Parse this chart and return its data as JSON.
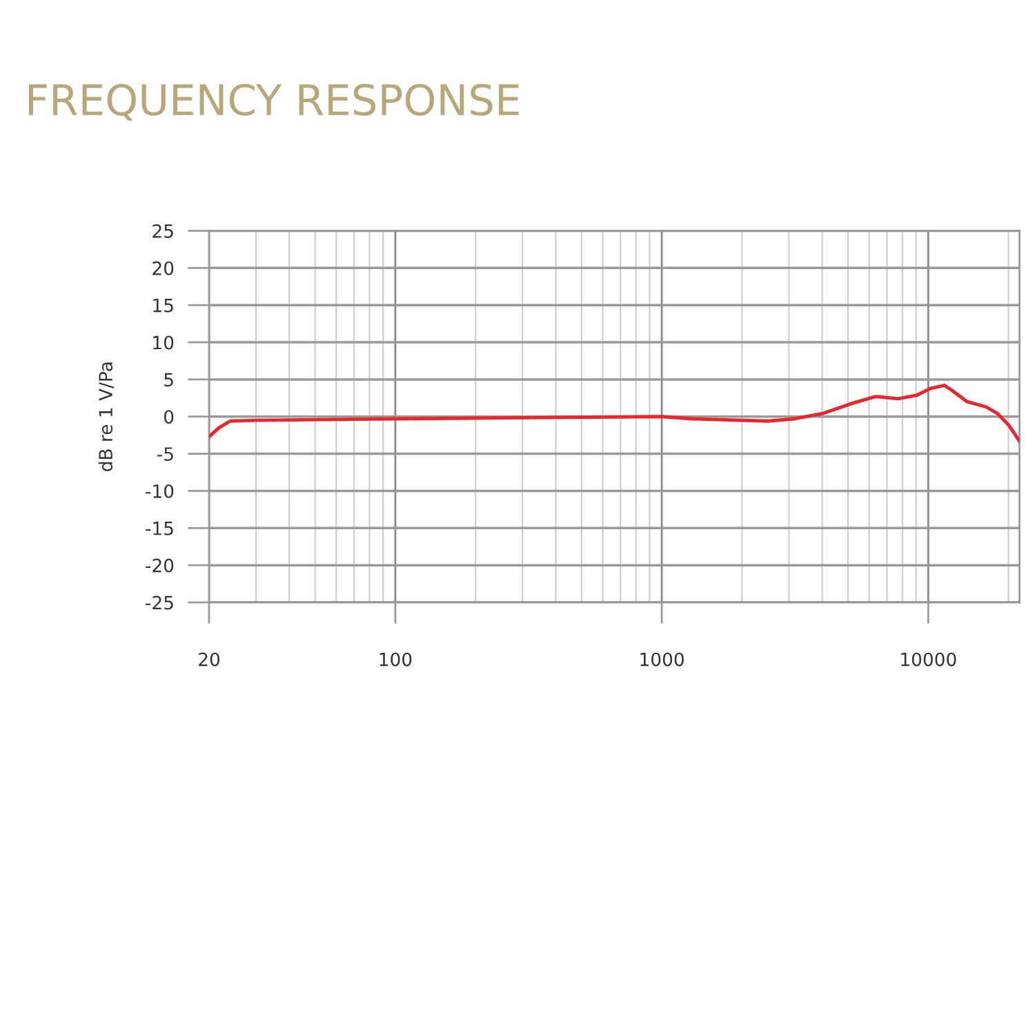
{
  "chart_data": {
    "type": "line",
    "title": "FREQUENCY RESPONSE",
    "ylabel": "dB re 1 V/Pa",
    "log": "x",
    "grid": true,
    "marker": "none",
    "line_style": "solid",
    "x": [
      20,
      21.8,
      24,
      30,
      100,
      1000,
      1300,
      2500,
      3150,
      4000,
      5200,
      6350,
      7700,
      9100,
      10200,
      11500,
      12200,
      14000,
      16500,
      18200,
      20100,
      22000
    ],
    "series": [
      {
        "color": "#e8262b",
        "values": [
          -2.7,
          -1.5,
          -0.6,
          -0.5,
          -0.3,
          0,
          -0.3,
          -0.6,
          -0.3,
          0.4,
          1.8,
          2.7,
          2.4,
          2.9,
          3.8,
          4.2,
          3.6,
          2.0,
          1.3,
          0.4,
          -1.2,
          -3.3
        ]
      }
    ],
    "xlim": [
      20,
      22000
    ],
    "xticks": [
      20,
      100,
      1000,
      10000
    ],
    "ylim": [
      -25,
      25
    ],
    "yticks": [
      25,
      20,
      15,
      10,
      5,
      0,
      -5,
      -10,
      -15,
      -20,
      -25
    ]
  }
}
